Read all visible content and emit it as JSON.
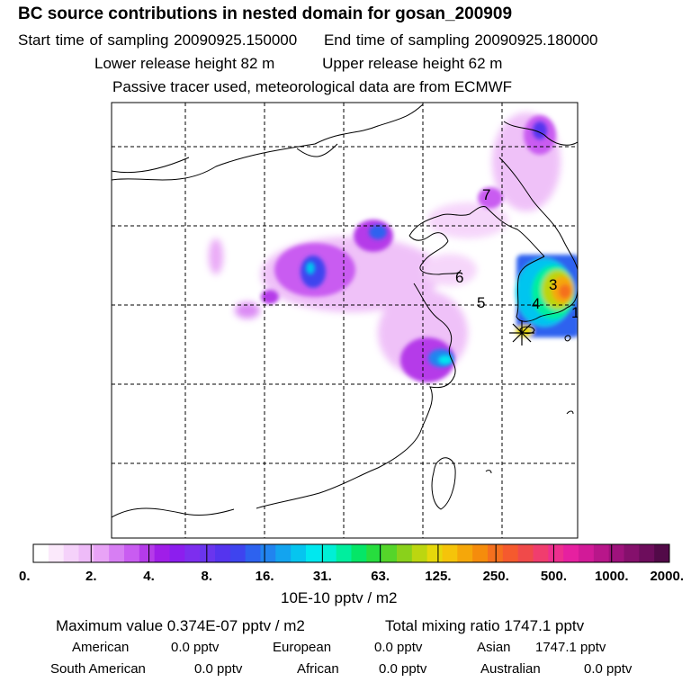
{
  "header": {
    "title": "BC  source contributions in nested domain for gosan_200909",
    "start_label": "Start time of sampling 20090925.150000",
    "end_label": "End time of sampling 20090925.180000",
    "lower_release": "Lower release height   82 m",
    "upper_release": "Upper release height   62 m",
    "tracer_note": "Passive tracer used, meteorological data are from ECMWF"
  },
  "chart_data": {
    "type": "heatmap",
    "title": "BC  source contributions in nested domain for gosan_200909",
    "map_labels": [
      "7",
      "6",
      "5",
      "4",
      "3",
      "1"
    ],
    "colorbar": {
      "tick_labels": [
        "0.",
        "2.",
        "4.",
        "8.",
        "16.",
        "31.",
        "63.",
        "125.",
        "250.",
        "500.",
        "1000.",
        "2000."
      ],
      "tick_values": [
        0,
        2,
        4,
        8,
        16,
        31,
        63,
        125,
        250,
        500,
        1000,
        2000
      ],
      "unit_label": "10E-10 pptv / m2",
      "colors": [
        "#ffffff",
        "#fbe9fb",
        "#f5d2fa",
        "#eebbf8",
        "#e8a3f6",
        "#d77ef3",
        "#c95cf1",
        "#b53be9",
        "#a01ee8",
        "#8c1eee",
        "#7d2eee",
        "#6a35ee",
        "#5534ee",
        "#3e44ef",
        "#2d62ef",
        "#2184ef",
        "#13a4ef",
        "#06c5ef",
        "#00e8ef",
        "#00efd6",
        "#00ee9e",
        "#05e667",
        "#27dd3e",
        "#55d52a",
        "#8ad11b",
        "#bcd610",
        "#e6d80b",
        "#f5c40a",
        "#f5a70a",
        "#f58c0c",
        "#f5701e",
        "#f55a2e",
        "#f04a4a",
        "#f03d6e",
        "#ed2f8e",
        "#e620a0",
        "#d21a98",
        "#b8168a",
        "#9e127c",
        "#85106c",
        "#6d0d5c",
        "#520a48"
      ]
    },
    "stats": {
      "max_label": "Maximum value  0.374E-07 pptv / m2",
      "total_label": "Total mixing ratio      1747.1 pptv",
      "american": "American",
      "american_val": "0.0 pptv",
      "european": "European",
      "european_val": "0.0 pptv",
      "asian": "Asian",
      "asian_val": "1747.1 pptv",
      "south_american": "South American",
      "south_american_val": "0.0 pptv",
      "african": "African",
      "african_val": "0.0 pptv",
      "australian": "Australian",
      "australian_val": "0.0 pptv"
    }
  }
}
